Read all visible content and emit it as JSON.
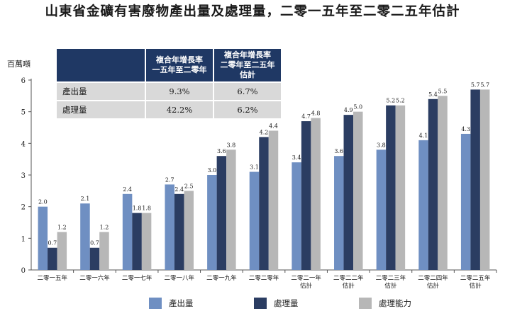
{
  "title": "山東省金礦有害廢物產出量及處理量，二零一五年至二零二五年估計",
  "colors": {
    "produced": "#6f8fc2",
    "processed": "#2b3d62",
    "capacity": "#b7b7b7",
    "header_bg": "#1f3864",
    "row_bg": "#d9d9d9"
  },
  "stats_table": {
    "headers": [
      "",
      "複合年增長率\n一五年至二零年",
      "複合年增長率\n二零年至二五年估計"
    ],
    "rows": [
      {
        "label": "產出量",
        "values": [
          "9.3%",
          "6.7%"
        ]
      },
      {
        "label": "處理量",
        "values": [
          "42.2%",
          "6.2%"
        ]
      }
    ]
  },
  "chart_data": {
    "type": "bar",
    "title": "山東省金礦有害廢物產出量及處理量，二零一五年至二零二五年估計",
    "ylabel": "百萬噸",
    "ylim": [
      0,
      6
    ],
    "yticks": [
      "0",
      "1",
      "2",
      "3",
      "4",
      "5",
      "6"
    ],
    "legend_position": "bottom",
    "categories": [
      "二零一五年",
      "二零一六年",
      "二零一七年",
      "二零一八年",
      "二零一九年",
      "二零二零年",
      "二零二一年\n估計",
      "二零二二年\n估計",
      "二零二三年\n估計",
      "二零二四年\n估計",
      "二零二五年\n估計"
    ],
    "series": [
      {
        "name": "產出量",
        "color": "#6f8fc2",
        "values": [
          2.0,
          2.1,
          2.4,
          2.7,
          3.0,
          3.1,
          3.4,
          3.6,
          3.8,
          4.1,
          4.3
        ],
        "labels": [
          "2.0",
          "2.1",
          "2.4",
          "2.7",
          "3.0",
          "3.1",
          "3.4",
          "3.6",
          "3.8",
          "4.1",
          "4.3"
        ]
      },
      {
        "name": "處理量",
        "color": "#2b3d62",
        "values": [
          0.7,
          0.7,
          1.8,
          2.4,
          3.6,
          4.2,
          4.7,
          4.9,
          5.2,
          5.4,
          5.7
        ],
        "labels": [
          "0.7",
          "0.7",
          "1.8",
          "2.4",
          "3.6",
          "4.2",
          "4.7",
          "4.9",
          "5.2",
          "5.4",
          "5.7"
        ]
      },
      {
        "name": "處理能力",
        "color": "#b7b7b7",
        "values": [
          1.2,
          1.2,
          1.8,
          2.5,
          3.8,
          4.4,
          4.8,
          5.0,
          5.2,
          5.5,
          5.7
        ],
        "labels": [
          "1.2",
          "1.2",
          "1.8",
          "2.5",
          "3.8",
          "4.4",
          "4.8",
          "5.0",
          "5.2",
          "5.5",
          "5.7"
        ]
      }
    ]
  }
}
